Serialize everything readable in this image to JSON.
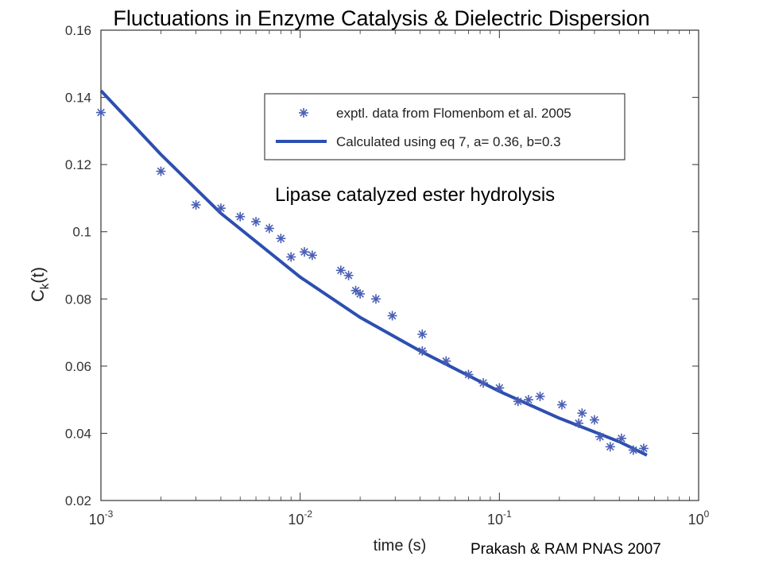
{
  "slide": {
    "title": "Fluctuations in Enzyme Catalysis & Dielectric Dispersion",
    "annotation": "Lipase catalyzed ester hydrolysis",
    "credit": "Prakash & RAM PNAS 2007"
  },
  "chart_data": {
    "type": "scatter",
    "xlabel": "time (s)",
    "ylabel": "C_k(t)",
    "ylabel_main": "C",
    "ylabel_sub": "k",
    "ylabel_tail": "(t)",
    "xscale": "log",
    "xlim": [
      0.001,
      1
    ],
    "ylim": [
      0.02,
      0.16
    ],
    "grid": false,
    "x_ticks": [
      {
        "value": 0.001,
        "base": "10",
        "exp": "-3"
      },
      {
        "value": 0.01,
        "base": "10",
        "exp": "-2"
      },
      {
        "value": 0.1,
        "base": "10",
        "exp": "-1"
      },
      {
        "value": 1,
        "base": "10",
        "exp": "0"
      }
    ],
    "y_ticks": [
      "0.02",
      "0.04",
      "0.06",
      "0.08",
      "0.1",
      "0.12",
      "0.14",
      "0.16"
    ],
    "legend_position": "top-right",
    "series": [
      {
        "name": "exptl. data from Flomenbom et al. 2005",
        "kind": "markers",
        "marker": "asterisk",
        "color": "#4a5fb5",
        "points": [
          [
            0.001,
            0.1355
          ],
          [
            0.002,
            0.118
          ],
          [
            0.003,
            0.108
          ],
          [
            0.004,
            0.107
          ],
          [
            0.005,
            0.1045
          ],
          [
            0.006,
            0.103
          ],
          [
            0.007,
            0.101
          ],
          [
            0.008,
            0.098
          ],
          [
            0.009,
            0.0925
          ],
          [
            0.0105,
            0.094
          ],
          [
            0.0115,
            0.093
          ],
          [
            0.016,
            0.0885
          ],
          [
            0.0175,
            0.087
          ],
          [
            0.019,
            0.0825
          ],
          [
            0.02,
            0.0815
          ],
          [
            0.024,
            0.08
          ],
          [
            0.029,
            0.075
          ],
          [
            0.041,
            0.0695
          ],
          [
            0.041,
            0.0645
          ],
          [
            0.054,
            0.0615
          ],
          [
            0.07,
            0.0575
          ],
          [
            0.083,
            0.055
          ],
          [
            0.1,
            0.0535
          ],
          [
            0.124,
            0.0495
          ],
          [
            0.14,
            0.05
          ],
          [
            0.16,
            0.051
          ],
          [
            0.206,
            0.0485
          ],
          [
            0.25,
            0.043
          ],
          [
            0.26,
            0.046
          ],
          [
            0.3,
            0.044
          ],
          [
            0.32,
            0.039
          ],
          [
            0.36,
            0.036
          ],
          [
            0.41,
            0.0385
          ],
          [
            0.47,
            0.035
          ],
          [
            0.53,
            0.0355
          ]
        ]
      },
      {
        "name": "Calculated using eq 7, a= 0.36, b=0.3",
        "kind": "line",
        "color": "#2c4fb0",
        "points": [
          [
            0.001,
            0.142
          ],
          [
            0.002,
            0.123
          ],
          [
            0.004,
            0.1055
          ],
          [
            0.01,
            0.0865
          ],
          [
            0.02,
            0.0745
          ],
          [
            0.04,
            0.0645
          ],
          [
            0.1,
            0.0525
          ],
          [
            0.2,
            0.0445
          ],
          [
            0.4,
            0.0375
          ],
          [
            0.55,
            0.0335
          ]
        ]
      }
    ]
  }
}
